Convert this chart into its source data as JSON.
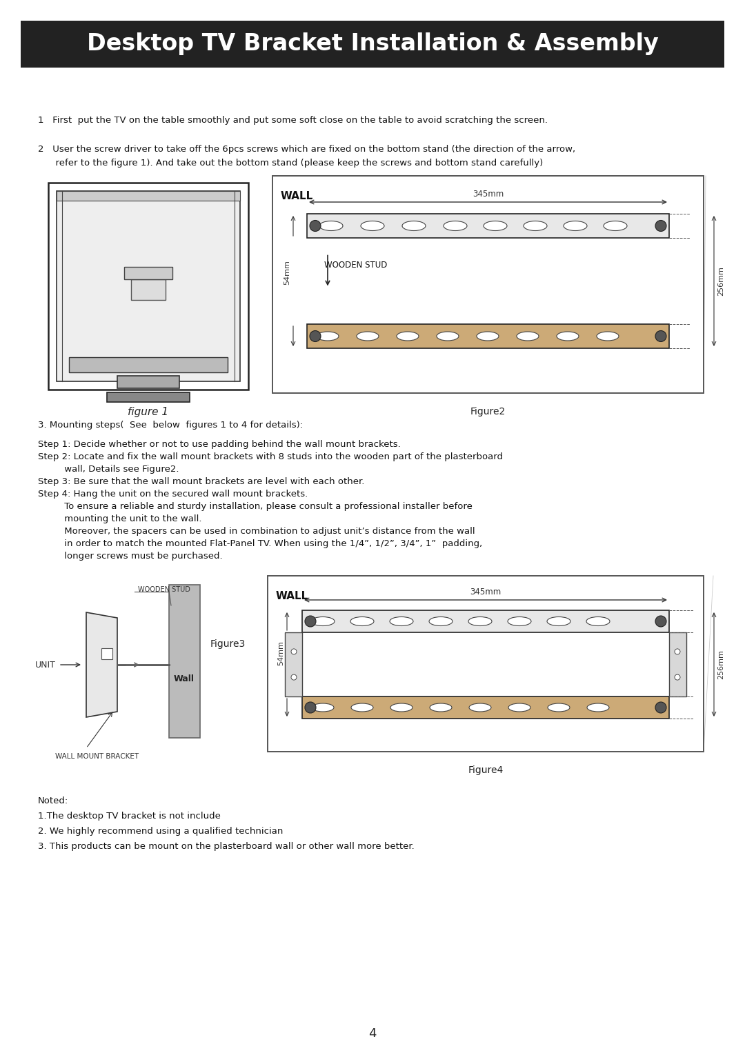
{
  "title": "Desktop TV Bracket Installation & Assembly",
  "title_bg": "#222222",
  "title_color": "#ffffff",
  "page_bg": "#ffffff",
  "page_number": "4",
  "step1": "1   First  put the TV on the table smoothly and put some soft close on the table to avoid scratching the screen.",
  "step2_line1": "2   User the screw driver to take off the 6pcs screws which are fixed on the bottom stand (the direction of the arrow,",
  "step2_line2": "      refer to the figure 1). And take out the bottom stand (please keep the screws and bottom stand carefully)",
  "fig1_caption": "figure 1",
  "fig2_caption": "Figure2",
  "fig3_caption": "Figure3",
  "fig4_caption": "Figure4",
  "mounting_header": "3. Mounting steps（ See  below  figures 1 to 4 for details）：",
  "s1": "Step 1: Decide whether or not to use padding behind the wall mount brackets.",
  "s2a": "Step 2: Locate and fix the wall mount brackets with 8 studs into the wooden part of the plasterboard",
  "s2b": "         wall, Details see Figure2.",
  "s3": "Step 3: Be sure that the wall mount brackets are level with each other.",
  "s4": "Step 4: Hang the unit on the secured wall mount brackets.",
  "s4a": "         To ensure a reliable and sturdy installation, please consult a professional installer before",
  "s4b": "         mounting the unit to the wall.",
  "s4c": "         Moreover, the spacers can be used in combination to adjust unit’s distance from the wall",
  "s4d": "         in order to match the mounted Flat-Panel TV. When using the 1/4”, 1/2”, 3/4”, 1”  padding,",
  "s4e": "         longer screws must be purchased.",
  "noted_header": "Noted:",
  "noted1": "1.The desktop TV bracket is not include",
  "noted2": "2. We highly recommend using a qualified technician",
  "noted3": "3. This products can be mount on the plasterboard wall or other wall more better.",
  "wall_label": "WALL",
  "wooden_stud_label": "WOODEN STUD",
  "dim_345": "345mm",
  "dim_54": "54mm",
  "dim_256": "256mm",
  "unit_label": "UNIT",
  "wall_label2": "Wall",
  "wall_mount_label": "WALL MOUNT BRACKET",
  "wooden_stud_label2": "WOODEN STUD"
}
